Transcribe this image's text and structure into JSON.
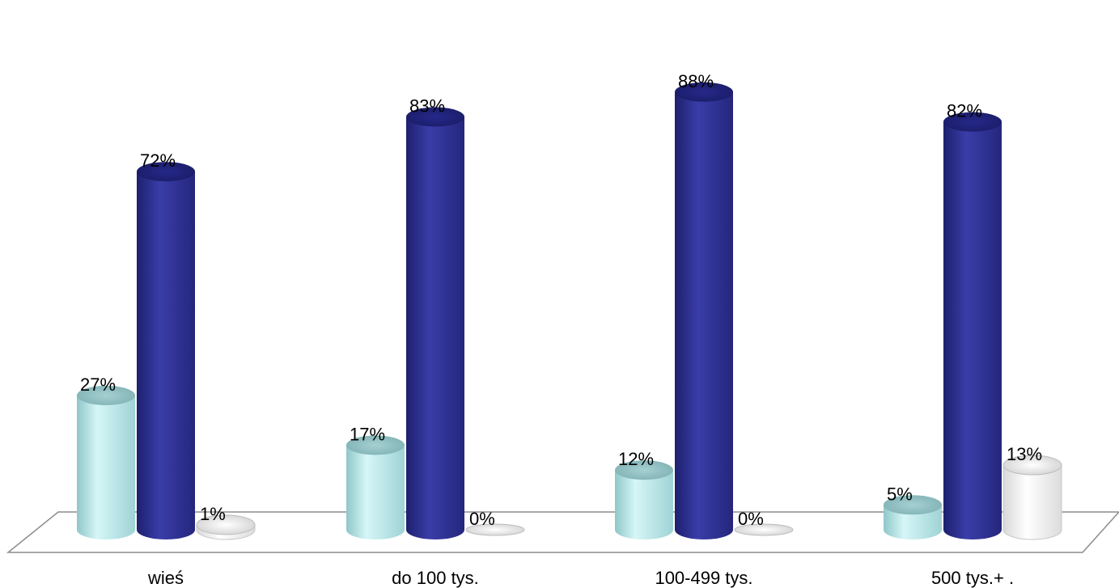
{
  "chart_data": {
    "type": "bar",
    "style": "3d-cylinder",
    "categories": [
      "wieś",
      "do 100 tys.",
      "100-499 tys.",
      "500 tys.+ ."
    ],
    "series": [
      {
        "values": [
          27,
          17,
          12,
          5
        ],
        "labels": [
          "27%",
          "17%",
          "12%",
          "5%"
        ],
        "color": "#bfeaec"
      },
      {
        "values": [
          72,
          83,
          88,
          82
        ],
        "labels": [
          "72%",
          "83%",
          "88%",
          "82%"
        ],
        "color": "#2e3192"
      },
      {
        "values": [
          1,
          0,
          0,
          13
        ],
        "labels": [
          "1%",
          "0%",
          "0%",
          "13%"
        ],
        "color": "#f4f4f4"
      }
    ],
    "ylim": [
      0,
      100
    ],
    "grid": false,
    "legend": "none"
  }
}
